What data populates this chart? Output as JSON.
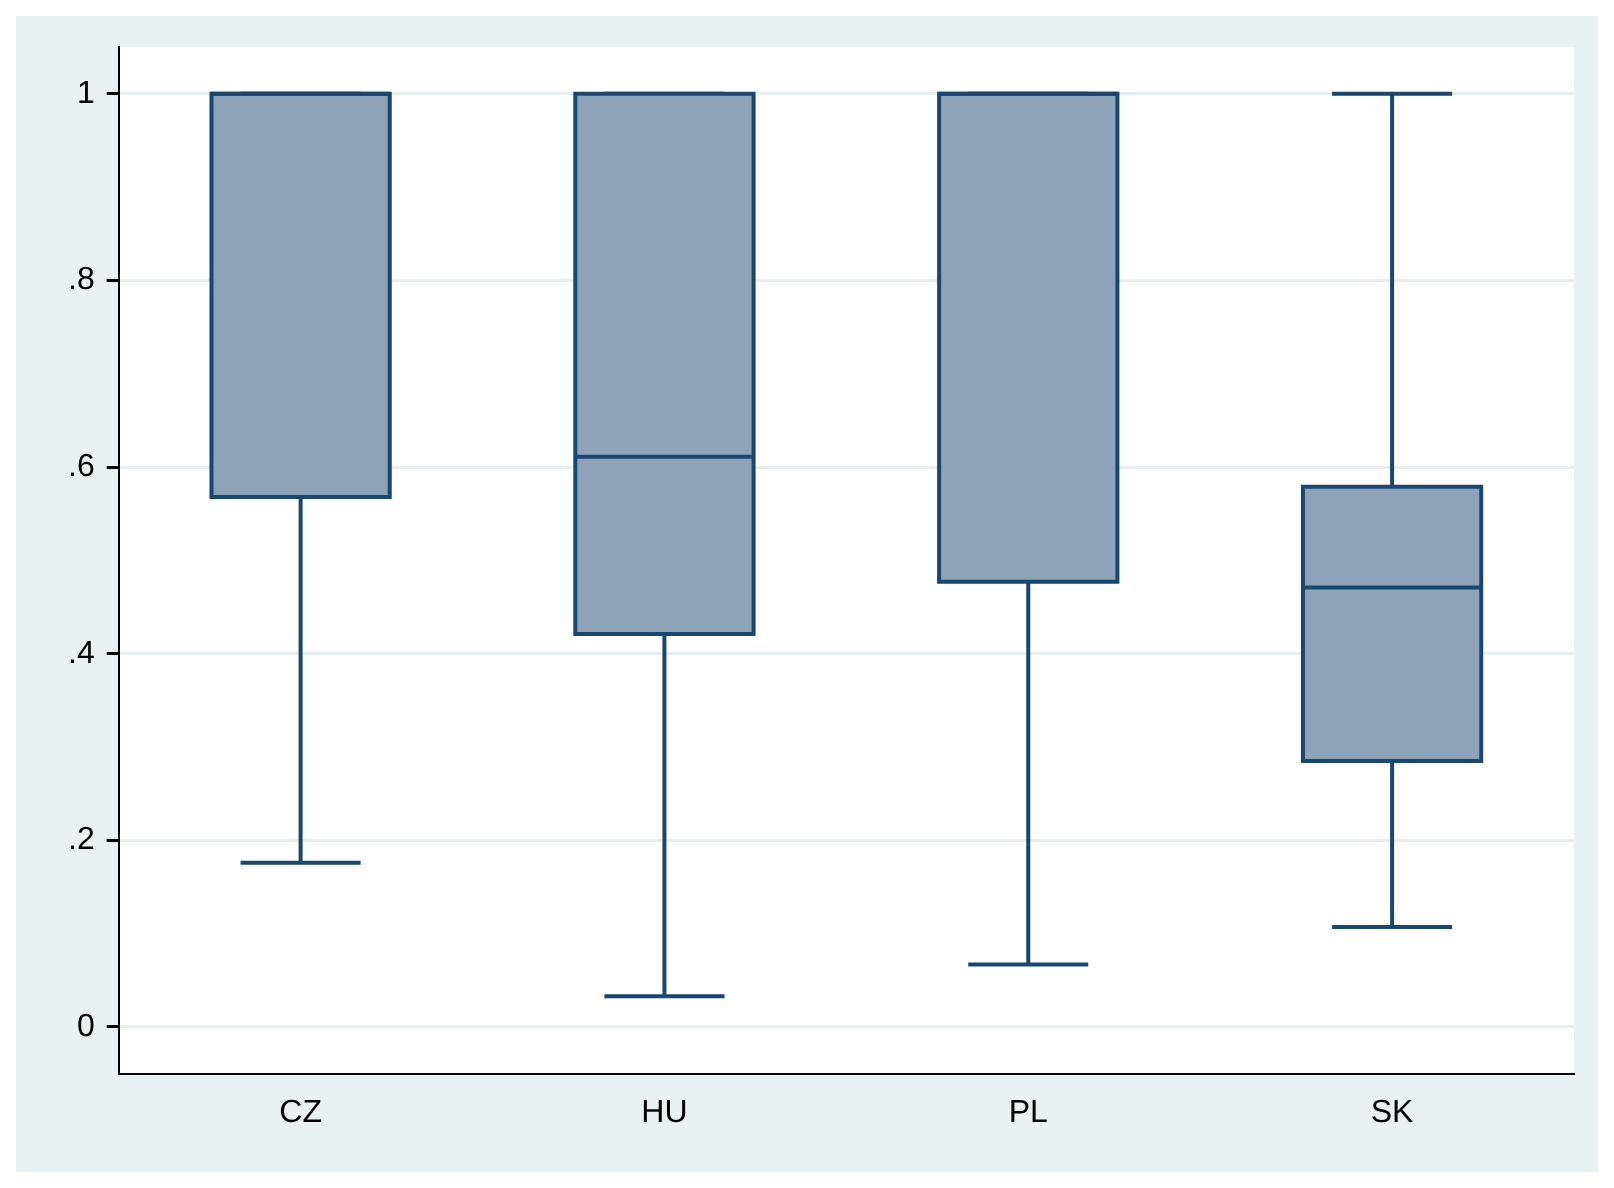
{
  "chart_data": {
    "type": "box",
    "categories": [
      "CZ",
      "HU",
      "PL",
      "SK"
    ],
    "color": "#8ea3b7",
    "ylim": [
      -0.05,
      1.05
    ],
    "yticks": [
      0,
      {
        "value": 0.2,
        "label": ".2"
      },
      {
        "value": 0.4,
        "label": ".4"
      },
      {
        "value": 0.6,
        "label": ".6"
      },
      {
        "value": 0.8,
        "label": ".8"
      },
      1
    ],
    "grid": "y",
    "legend": false,
    "boxes": [
      {
        "low": 0.176,
        "q1": 0.568,
        "median": 1,
        "q3": 1,
        "high": 1
      },
      {
        "low": 0.033,
        "q1": 0.421,
        "median": 0.611,
        "q3": 1,
        "high": 1
      },
      {
        "low": 0.067,
        "q1": 0.477,
        "median": 1,
        "q3": 1,
        "high": 1
      },
      {
        "low": 0.107,
        "q1": 0.285,
        "median": 0.471,
        "q3": 0.579,
        "high": 1
      }
    ]
  }
}
